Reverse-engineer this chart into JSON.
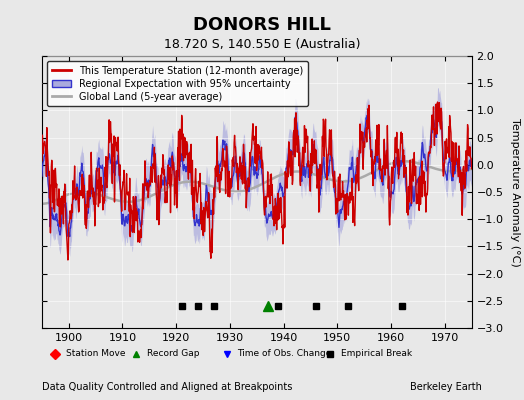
{
  "title": "DONORS HILL",
  "subtitle": "18.720 S, 140.550 E (Australia)",
  "ylabel": "Temperature Anomaly (°C)",
  "xlabel_note": "Data Quality Controlled and Aligned at Breakpoints",
  "credit": "Berkeley Earth",
  "year_start": 1895,
  "year_end": 1975,
  "ylim": [
    -3,
    2
  ],
  "yticks": [
    -3,
    -2.5,
    -2,
    -1.5,
    -1,
    -0.5,
    0,
    0.5,
    1,
    1.5,
    2
  ],
  "xticks": [
    1900,
    1910,
    1920,
    1930,
    1940,
    1950,
    1960,
    1970
  ],
  "background_color": "#e8e8e8",
  "plot_bg_color": "#e8e8e8",
  "station_color": "#cc0000",
  "regional_color": "#3333cc",
  "regional_fill_color": "#aaaadd",
  "global_color": "#aaaaaa",
  "legend_box_color": "white",
  "marker_colors": {
    "station_move": "red",
    "record_gap": "green",
    "obs_change": "blue",
    "empirical_break": "black"
  },
  "empirical_breaks": [
    1921,
    1924,
    1927,
    1939,
    1946,
    1952,
    1962
  ],
  "record_gap": [
    1937
  ],
  "station_move": [],
  "obs_change": []
}
